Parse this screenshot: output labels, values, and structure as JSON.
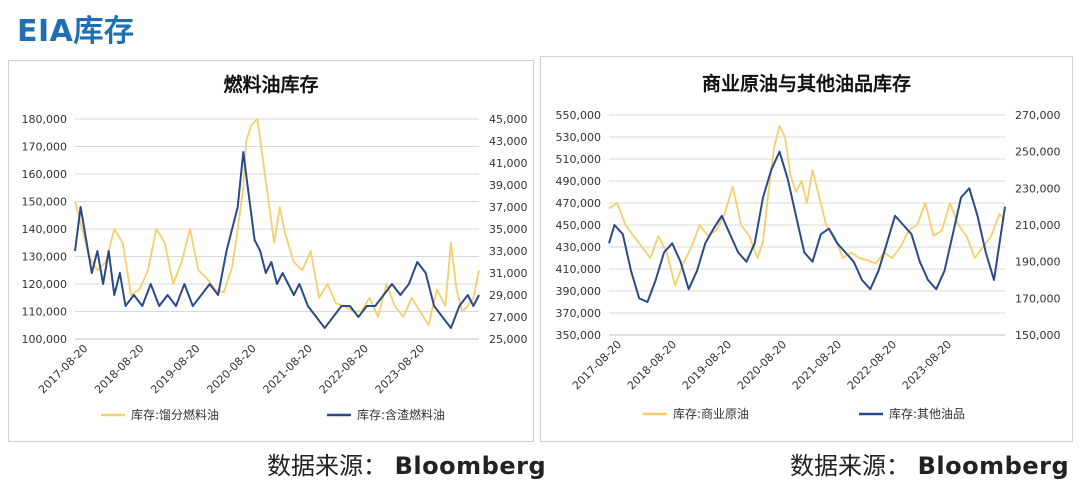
{
  "page": {
    "title": "EIA库存"
  },
  "sources": [
    {
      "label": "数据来源：",
      "name": "Bloomberg"
    },
    {
      "label": "数据来源：",
      "name": "Bloomberg"
    }
  ],
  "chart_data": [
    {
      "type": "line",
      "title": "燃料油库存",
      "x_ticks": [
        "2017-08-20",
        "2018-08-20",
        "2019-08-20",
        "2020-08-20",
        "2021-08-20",
        "2022-08-20",
        "2023-08-20"
      ],
      "y_left": {
        "range": [
          100000,
          180000
        ],
        "ticks": [
          "100,000",
          "110,000",
          "120,000",
          "130,000",
          "140,000",
          "150,000",
          "160,000",
          "170,000",
          "180,000"
        ]
      },
      "y_right": {
        "range": [
          25000,
          45000
        ],
        "ticks": [
          "25,000",
          "27,000",
          "29,000",
          "31,000",
          "33,000",
          "35,000",
          "37,000",
          "39,000",
          "41,000",
          "43,000",
          "45,000"
        ]
      },
      "x_range": [
        2017.4,
        2024.6
      ],
      "colors": {
        "left_series": "#F5CF6B",
        "right_series": "#2B4A8C"
      },
      "legend_position": "bottom",
      "series": [
        {
          "name": "库存:馏分燃料油",
          "axis": "left",
          "x": [
            2017.4,
            2017.55,
            2017.65,
            2017.8,
            2017.95,
            2018.1,
            2018.25,
            2018.4,
            2018.55,
            2018.7,
            2018.85,
            2019.0,
            2019.15,
            2019.3,
            2019.45,
            2019.6,
            2019.75,
            2019.9,
            2020.05,
            2020.2,
            2020.3,
            2020.4,
            2020.45,
            2020.55,
            2020.65,
            2020.75,
            2020.85,
            2020.95,
            2021.05,
            2021.15,
            2021.3,
            2021.45,
            2021.6,
            2021.75,
            2021.9,
            2022.05,
            2022.2,
            2022.35,
            2022.5,
            2022.65,
            2022.8,
            2022.95,
            2023.1,
            2023.25,
            2023.4,
            2023.55,
            2023.7,
            2023.85,
            2024.0,
            2024.1,
            2024.2,
            2024.3,
            2024.4,
            2024.5,
            2024.6
          ],
          "values": [
            150,
            138,
            130,
            125,
            128,
            140,
            135,
            116,
            118,
            125,
            140,
            135,
            120,
            128,
            140,
            125,
            122,
            118,
            117,
            126,
            140,
            155,
            172,
            178,
            180,
            165,
            150,
            135,
            148,
            138,
            128,
            125,
            132,
            115,
            120,
            113,
            112,
            110,
            110,
            115,
            108,
            120,
            112,
            108,
            115,
            110,
            105,
            118,
            112,
            135,
            118,
            110,
            112,
            115,
            125
          ]
        },
        {
          "name": "库存:含渣燃料油",
          "axis": "right",
          "x": [
            2017.4,
            2017.5,
            2017.6,
            2017.7,
            2017.8,
            2017.9,
            2018.0,
            2018.1,
            2018.2,
            2018.3,
            2018.45,
            2018.6,
            2018.75,
            2018.9,
            2019.05,
            2019.2,
            2019.35,
            2019.5,
            2019.65,
            2019.8,
            2019.95,
            2020.1,
            2020.2,
            2020.3,
            2020.4,
            2020.5,
            2020.6,
            2020.7,
            2020.8,
            2020.9,
            2021.0,
            2021.1,
            2021.2,
            2021.3,
            2021.4,
            2021.55,
            2021.7,
            2021.85,
            2022.0,
            2022.15,
            2022.3,
            2022.45,
            2022.6,
            2022.75,
            2022.9,
            2023.05,
            2023.2,
            2023.35,
            2023.5,
            2023.65,
            2023.8,
            2023.95,
            2024.1,
            2024.25,
            2024.4,
            2024.5,
            2024.6
          ],
          "values": [
            33,
            37,
            34,
            31,
            33,
            30,
            33,
            29,
            31,
            28,
            29,
            28,
            30,
            28,
            29,
            28,
            30,
            28,
            29,
            30,
            29,
            33,
            35,
            37,
            42,
            38,
            34,
            33,
            31,
            32,
            30,
            31,
            30,
            29,
            30,
            28,
            27,
            26,
            27,
            28,
            28,
            27,
            28,
            28,
            29,
            30,
            29,
            30,
            32,
            31,
            28,
            27,
            26,
            28,
            29,
            28,
            29
          ]
        }
      ]
    },
    {
      "type": "line",
      "title": "商业原油与其他油品库存",
      "x_ticks": [
        "2017-08-20",
        "2018-08-20",
        "2019-08-20",
        "2020-08-20",
        "2021-08-20",
        "2022-08-20",
        "2023-08-20"
      ],
      "y_left": {
        "range": [
          350000,
          550000
        ],
        "ticks": [
          "350,000",
          "370,000",
          "390,000",
          "410,000",
          "430,000",
          "450,000",
          "470,000",
          "490,000",
          "510,000",
          "530,000",
          "550,000"
        ]
      },
      "y_right": {
        "range": [
          150000,
          270000
        ],
        "ticks": [
          "150,000",
          "170,000",
          "190,000",
          "210,000",
          "230,000",
          "250,000",
          "270,000"
        ]
      },
      "x_range": [
        2017.4,
        2024.6
      ],
      "colors": {
        "left_series": "#F5CF6B",
        "right_series": "#2B4A8C"
      },
      "legend_position": "bottom",
      "series": [
        {
          "name": "库存:商业原油",
          "axis": "left",
          "x": [
            2017.4,
            2017.55,
            2017.7,
            2017.85,
            2018.0,
            2018.15,
            2018.3,
            2018.45,
            2018.6,
            2018.75,
            2018.9,
            2019.05,
            2019.2,
            2019.35,
            2019.5,
            2019.65,
            2019.8,
            2019.95,
            2020.1,
            2020.2,
            2020.3,
            2020.4,
            2020.5,
            2020.6,
            2020.7,
            2020.8,
            2020.9,
            2021.0,
            2021.1,
            2021.2,
            2021.35,
            2021.5,
            2021.65,
            2021.8,
            2021.95,
            2022.1,
            2022.25,
            2022.4,
            2022.55,
            2022.7,
            2022.85,
            2023.0,
            2023.15,
            2023.3,
            2023.45,
            2023.6,
            2023.75,
            2023.9,
            2024.05,
            2024.2,
            2024.35,
            2024.5,
            2024.6
          ],
          "values": [
            465,
            470,
            450,
            440,
            430,
            420,
            440,
            425,
            395,
            415,
            430,
            450,
            440,
            445,
            460,
            485,
            450,
            440,
            420,
            435,
            480,
            520,
            540,
            530,
            495,
            480,
            490,
            470,
            500,
            480,
            450,
            440,
            420,
            425,
            420,
            418,
            415,
            425,
            420,
            430,
            445,
            450,
            470,
            440,
            445,
            470,
            450,
            440,
            420,
            430,
            440,
            460,
            455
          ]
        },
        {
          "name": "库存:其他油品",
          "axis": "right",
          "x": [
            2017.4,
            2017.5,
            2017.65,
            2017.8,
            2017.95,
            2018.1,
            2018.25,
            2018.4,
            2018.55,
            2018.7,
            2018.85,
            2019.0,
            2019.15,
            2019.3,
            2019.45,
            2019.6,
            2019.75,
            2019.9,
            2020.05,
            2020.2,
            2020.35,
            2020.5,
            2020.65,
            2020.8,
            2020.95,
            2021.1,
            2021.25,
            2021.4,
            2021.55,
            2021.7,
            2021.85,
            2022.0,
            2022.15,
            2022.3,
            2022.45,
            2022.6,
            2022.75,
            2022.9,
            2023.05,
            2023.2,
            2023.35,
            2023.5,
            2023.65,
            2023.8,
            2023.95,
            2024.1,
            2024.25,
            2024.4,
            2024.5,
            2024.6
          ],
          "values": [
            200,
            210,
            205,
            185,
            170,
            168,
            180,
            195,
            200,
            190,
            175,
            185,
            200,
            208,
            215,
            205,
            195,
            190,
            200,
            225,
            240,
            250,
            235,
            215,
            195,
            190,
            205,
            208,
            200,
            195,
            190,
            180,
            175,
            185,
            200,
            215,
            210,
            205,
            190,
            180,
            175,
            185,
            205,
            225,
            230,
            215,
            195,
            180,
            200,
            220
          ]
        }
      ]
    }
  ]
}
